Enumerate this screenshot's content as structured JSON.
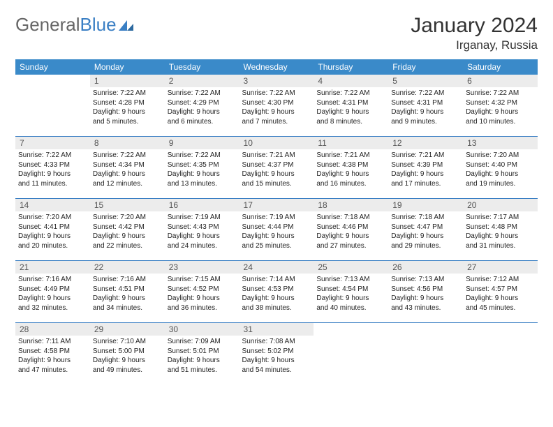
{
  "brand": {
    "part1": "General",
    "part2": "Blue"
  },
  "title": "January 2024",
  "location": "Irganay, Russia",
  "colors": {
    "accent": "#3a8ac9",
    "rule": "#3a7fc4",
    "daybg": "#ececec"
  },
  "daysOfWeek": [
    "Sunday",
    "Monday",
    "Tuesday",
    "Wednesday",
    "Thursday",
    "Friday",
    "Saturday"
  ],
  "weeks": [
    [
      {
        "n": "",
        "lines": []
      },
      {
        "n": "1",
        "lines": [
          "Sunrise: 7:22 AM",
          "Sunset: 4:28 PM",
          "Daylight: 9 hours",
          "and 5 minutes."
        ]
      },
      {
        "n": "2",
        "lines": [
          "Sunrise: 7:22 AM",
          "Sunset: 4:29 PM",
          "Daylight: 9 hours",
          "and 6 minutes."
        ]
      },
      {
        "n": "3",
        "lines": [
          "Sunrise: 7:22 AM",
          "Sunset: 4:30 PM",
          "Daylight: 9 hours",
          "and 7 minutes."
        ]
      },
      {
        "n": "4",
        "lines": [
          "Sunrise: 7:22 AM",
          "Sunset: 4:31 PM",
          "Daylight: 9 hours",
          "and 8 minutes."
        ]
      },
      {
        "n": "5",
        "lines": [
          "Sunrise: 7:22 AM",
          "Sunset: 4:31 PM",
          "Daylight: 9 hours",
          "and 9 minutes."
        ]
      },
      {
        "n": "6",
        "lines": [
          "Sunrise: 7:22 AM",
          "Sunset: 4:32 PM",
          "Daylight: 9 hours",
          "and 10 minutes."
        ]
      }
    ],
    [
      {
        "n": "7",
        "lines": [
          "Sunrise: 7:22 AM",
          "Sunset: 4:33 PM",
          "Daylight: 9 hours",
          "and 11 minutes."
        ]
      },
      {
        "n": "8",
        "lines": [
          "Sunrise: 7:22 AM",
          "Sunset: 4:34 PM",
          "Daylight: 9 hours",
          "and 12 minutes."
        ]
      },
      {
        "n": "9",
        "lines": [
          "Sunrise: 7:22 AM",
          "Sunset: 4:35 PM",
          "Daylight: 9 hours",
          "and 13 minutes."
        ]
      },
      {
        "n": "10",
        "lines": [
          "Sunrise: 7:21 AM",
          "Sunset: 4:37 PM",
          "Daylight: 9 hours",
          "and 15 minutes."
        ]
      },
      {
        "n": "11",
        "lines": [
          "Sunrise: 7:21 AM",
          "Sunset: 4:38 PM",
          "Daylight: 9 hours",
          "and 16 minutes."
        ]
      },
      {
        "n": "12",
        "lines": [
          "Sunrise: 7:21 AM",
          "Sunset: 4:39 PM",
          "Daylight: 9 hours",
          "and 17 minutes."
        ]
      },
      {
        "n": "13",
        "lines": [
          "Sunrise: 7:20 AM",
          "Sunset: 4:40 PM",
          "Daylight: 9 hours",
          "and 19 minutes."
        ]
      }
    ],
    [
      {
        "n": "14",
        "lines": [
          "Sunrise: 7:20 AM",
          "Sunset: 4:41 PM",
          "Daylight: 9 hours",
          "and 20 minutes."
        ]
      },
      {
        "n": "15",
        "lines": [
          "Sunrise: 7:20 AM",
          "Sunset: 4:42 PM",
          "Daylight: 9 hours",
          "and 22 minutes."
        ]
      },
      {
        "n": "16",
        "lines": [
          "Sunrise: 7:19 AM",
          "Sunset: 4:43 PM",
          "Daylight: 9 hours",
          "and 24 minutes."
        ]
      },
      {
        "n": "17",
        "lines": [
          "Sunrise: 7:19 AM",
          "Sunset: 4:44 PM",
          "Daylight: 9 hours",
          "and 25 minutes."
        ]
      },
      {
        "n": "18",
        "lines": [
          "Sunrise: 7:18 AM",
          "Sunset: 4:46 PM",
          "Daylight: 9 hours",
          "and 27 minutes."
        ]
      },
      {
        "n": "19",
        "lines": [
          "Sunrise: 7:18 AM",
          "Sunset: 4:47 PM",
          "Daylight: 9 hours",
          "and 29 minutes."
        ]
      },
      {
        "n": "20",
        "lines": [
          "Sunrise: 7:17 AM",
          "Sunset: 4:48 PM",
          "Daylight: 9 hours",
          "and 31 minutes."
        ]
      }
    ],
    [
      {
        "n": "21",
        "lines": [
          "Sunrise: 7:16 AM",
          "Sunset: 4:49 PM",
          "Daylight: 9 hours",
          "and 32 minutes."
        ]
      },
      {
        "n": "22",
        "lines": [
          "Sunrise: 7:16 AM",
          "Sunset: 4:51 PM",
          "Daylight: 9 hours",
          "and 34 minutes."
        ]
      },
      {
        "n": "23",
        "lines": [
          "Sunrise: 7:15 AM",
          "Sunset: 4:52 PM",
          "Daylight: 9 hours",
          "and 36 minutes."
        ]
      },
      {
        "n": "24",
        "lines": [
          "Sunrise: 7:14 AM",
          "Sunset: 4:53 PM",
          "Daylight: 9 hours",
          "and 38 minutes."
        ]
      },
      {
        "n": "25",
        "lines": [
          "Sunrise: 7:13 AM",
          "Sunset: 4:54 PM",
          "Daylight: 9 hours",
          "and 40 minutes."
        ]
      },
      {
        "n": "26",
        "lines": [
          "Sunrise: 7:13 AM",
          "Sunset: 4:56 PM",
          "Daylight: 9 hours",
          "and 43 minutes."
        ]
      },
      {
        "n": "27",
        "lines": [
          "Sunrise: 7:12 AM",
          "Sunset: 4:57 PM",
          "Daylight: 9 hours",
          "and 45 minutes."
        ]
      }
    ],
    [
      {
        "n": "28",
        "lines": [
          "Sunrise: 7:11 AM",
          "Sunset: 4:58 PM",
          "Daylight: 9 hours",
          "and 47 minutes."
        ]
      },
      {
        "n": "29",
        "lines": [
          "Sunrise: 7:10 AM",
          "Sunset: 5:00 PM",
          "Daylight: 9 hours",
          "and 49 minutes."
        ]
      },
      {
        "n": "30",
        "lines": [
          "Sunrise: 7:09 AM",
          "Sunset: 5:01 PM",
          "Daylight: 9 hours",
          "and 51 minutes."
        ]
      },
      {
        "n": "31",
        "lines": [
          "Sunrise: 7:08 AM",
          "Sunset: 5:02 PM",
          "Daylight: 9 hours",
          "and 54 minutes."
        ]
      },
      {
        "n": "",
        "lines": []
      },
      {
        "n": "",
        "lines": []
      },
      {
        "n": "",
        "lines": []
      }
    ]
  ]
}
